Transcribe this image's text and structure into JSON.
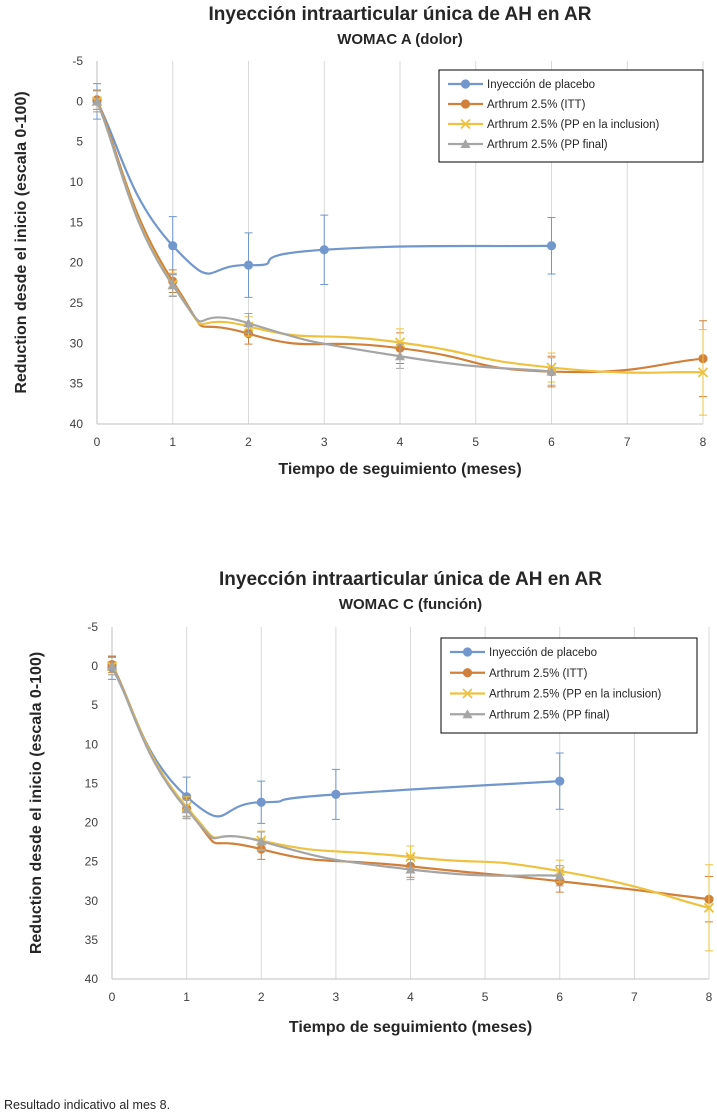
{
  "chart_data": [
    {
      "type": "line",
      "title": "Inyección intraarticular única de AH en AR",
      "subtitle": "WOMAC A (dolor)",
      "xlabel": "Tiempo de seguimiento (meses)",
      "ylabel": "Reduction desde el inicio (escala 0-100)",
      "xlim": [
        0,
        8
      ],
      "ylim": [
        -5,
        40
      ],
      "y_inverted": true,
      "xticks": [
        0,
        1,
        2,
        3,
        4,
        5,
        6,
        7,
        8
      ],
      "yticks": [
        -5,
        0,
        5,
        10,
        15,
        20,
        25,
        30,
        35,
        40
      ],
      "grid": "vertical",
      "legend": "top-right",
      "series": [
        {
          "name": "Inyección de placebo",
          "color": "#7297cc",
          "marker": "circle",
          "x": [
            0,
            1,
            2,
            3,
            6
          ],
          "y": [
            0,
            17.9,
            20.3,
            18.4,
            17.9
          ],
          "error": [
            2.2,
            3.6,
            4.0,
            4.3,
            3.5
          ]
        },
        {
          "name": "Arthrum 2.5% (ITT)",
          "color": "#d0803a",
          "marker": "circle",
          "x": [
            0,
            1,
            2,
            4,
            6,
            8
          ],
          "y": [
            -0.2,
            22.3,
            28.8,
            30.6,
            33.5,
            31.9
          ],
          "error": [
            1.2,
            1.4,
            1.3,
            1.9,
            1.9,
            4.7
          ]
        },
        {
          "name": "Arthrum 2.5% (PP en la inclusion)",
          "color": "#eec240",
          "marker": "x",
          "x": [
            0,
            1,
            2,
            4,
            6,
            8
          ],
          "y": [
            0,
            22.7,
            27.9,
            29.9,
            33.0,
            33.6
          ],
          "error": [
            1.3,
            1.4,
            1.2,
            1.7,
            1.8,
            5.3
          ]
        },
        {
          "name": "Arthrum 2.5% (PP final)",
          "color": "#a5a5a5",
          "marker": "triangle",
          "x": [
            0,
            1,
            2,
            4,
            6
          ],
          "y": [
            0,
            22.8,
            27.5,
            31.6,
            33.5
          ],
          "error": [
            1.3,
            1.4,
            1.2,
            1.5,
            1.7
          ]
        }
      ]
    },
    {
      "type": "line",
      "title": "Inyección intraarticular única de AH en AR",
      "subtitle": "WOMAC C (función)",
      "xlabel": "Tiempo de seguimiento (meses)",
      "ylabel": "Reduction desde el inicio (escala 0-100)",
      "xlim": [
        0,
        8
      ],
      "ylim": [
        -5,
        40
      ],
      "y_inverted": true,
      "xticks": [
        0,
        1,
        2,
        3,
        4,
        5,
        6,
        7,
        8
      ],
      "yticks": [
        -5,
        0,
        5,
        10,
        15,
        20,
        25,
        30,
        35,
        40
      ],
      "grid": "vertical",
      "legend": "top-right",
      "series": [
        {
          "name": "Inyección de placebo",
          "color": "#7297cc",
          "marker": "circle",
          "x": [
            0,
            1,
            2,
            3,
            6
          ],
          "y": [
            0.2,
            16.7,
            17.4,
            16.4,
            14.7
          ],
          "error": [
            1.5,
            2.5,
            2.7,
            3.2,
            3.6
          ]
        },
        {
          "name": "Arthrum 2.5% (ITT)",
          "color": "#d0803a",
          "marker": "circle",
          "x": [
            0,
            1,
            2,
            4,
            6,
            8
          ],
          "y": [
            -0.2,
            18.2,
            23.4,
            25.6,
            27.5,
            29.8
          ],
          "error": [
            1.0,
            1.3,
            1.3,
            1.4,
            1.4,
            2.9
          ]
        },
        {
          "name": "Arthrum 2.5% (PP en la inclusion)",
          "color": "#eec240",
          "marker": "x",
          "x": [
            0,
            1,
            2,
            4,
            6,
            8
          ],
          "y": [
            0,
            18.0,
            22.3,
            24.4,
            26.2,
            30.9
          ],
          "error": [
            1.1,
            1.3,
            1.2,
            1.4,
            1.4,
            5.5
          ]
        },
        {
          "name": "Arthrum 2.5% (PP final)",
          "color": "#a5a5a5",
          "marker": "triangle",
          "x": [
            0,
            1,
            2,
            4,
            6
          ],
          "y": [
            0,
            18.3,
            22.4,
            26.0,
            26.8
          ],
          "error": [
            1.1,
            1.2,
            1.2,
            1.3,
            1.3
          ]
        }
      ]
    }
  ],
  "footnote": "Resultado indicativo al mes 8."
}
